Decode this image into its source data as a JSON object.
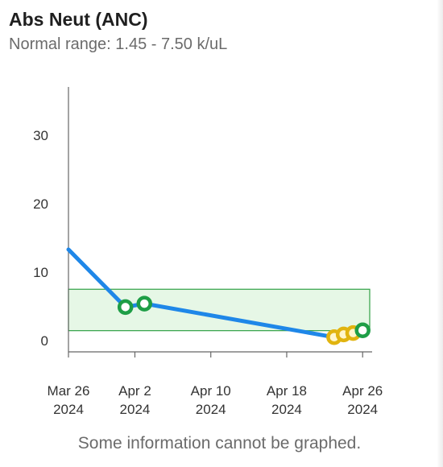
{
  "header": {
    "title": "Abs Neut (ANC)",
    "subtitle": "Normal range: 1.45 - 7.50 k/uL"
  },
  "footer": {
    "note": "Some information cannot be graphed."
  },
  "colors": {
    "line": "#1f87e8",
    "normal_point": "#1e9e46",
    "flagged_point": "#e1b40f",
    "range_fill": "#e6f7e6",
    "range_border": "#2ea043"
  },
  "chart_data": {
    "type": "line",
    "title": "Abs Neut (ANC)",
    "xlabel": "",
    "ylabel": "",
    "ylim": [
      0,
      37
    ],
    "yticks": [
      0,
      10,
      20,
      30
    ],
    "x_ticks": [
      {
        "date": "2024-03-26",
        "line1": "Mar 26",
        "line2": "2024"
      },
      {
        "date": "2024-04-02",
        "line1": "Apr 2",
        "line2": "2024"
      },
      {
        "date": "2024-04-10",
        "line1": "Apr 10",
        "line2": "2024"
      },
      {
        "date": "2024-04-18",
        "line1": "Apr 18",
        "line2": "2024"
      },
      {
        "date": "2024-04-26",
        "line1": "Apr 26",
        "line2": "2024"
      }
    ],
    "xlim": [
      "2024-03-26",
      "2024-04-27"
    ],
    "normal_range": [
      1.45,
      7.5
    ],
    "grid": false,
    "series": [
      {
        "points": [
          {
            "x": "2024-03-26",
            "y": 13.3,
            "status": "none"
          },
          {
            "x": "2024-04-01",
            "y": 4.9,
            "status": "normal"
          },
          {
            "x": "2024-04-03",
            "y": 5.4,
            "status": "normal"
          },
          {
            "x": "2024-04-23",
            "y": 0.5,
            "status": "low"
          },
          {
            "x": "2024-04-24",
            "y": 0.9,
            "status": "low"
          },
          {
            "x": "2024-04-25",
            "y": 1.1,
            "status": "low"
          },
          {
            "x": "2024-04-26",
            "y": 1.5,
            "status": "normal"
          }
        ]
      }
    ]
  }
}
